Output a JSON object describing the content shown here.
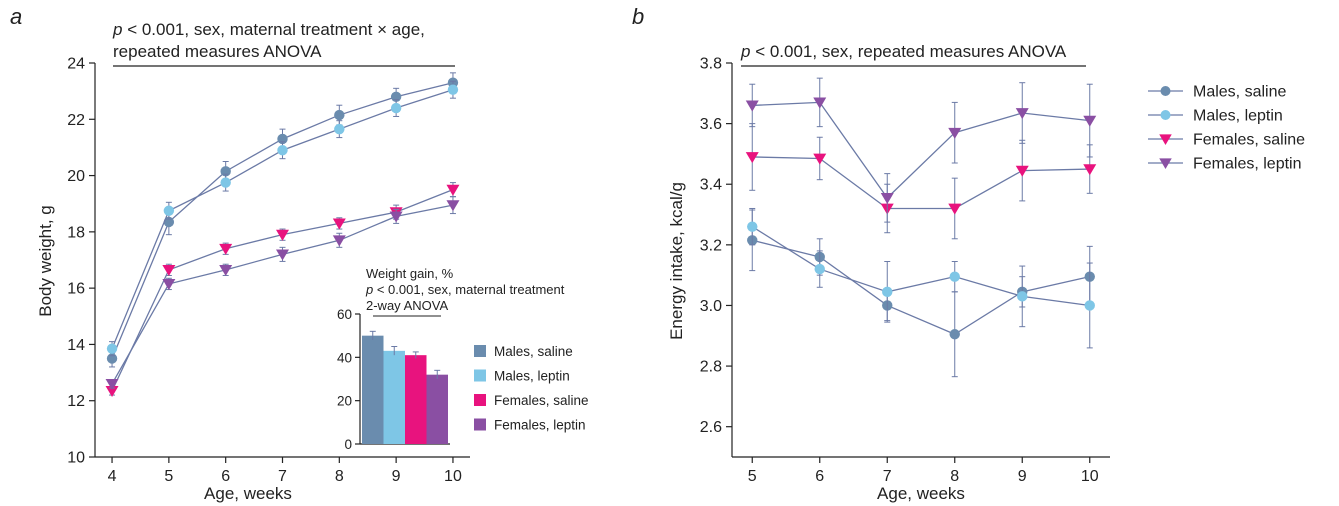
{
  "colors": {
    "males_saline": "#6a8cae",
    "males_leptin": "#7ec6e6",
    "females_saline": "#e8137e",
    "females_leptin": "#8a4fa3",
    "line": "#6b7aa6",
    "error": "#6b7aa6"
  },
  "chart_data": [
    {
      "panel": "a",
      "type": "line",
      "title": "",
      "annotation": {
        "line1_italic": "p",
        "line1_rest": " < 0.001, sex, maternal treatment × age,",
        "line2": "repeated measures ANOVA"
      },
      "xlabel": "Age, weeks",
      "ylabel": "Body weight, g",
      "x": [
        4,
        5,
        6,
        7,
        8,
        9,
        10
      ],
      "xlim": [
        3.7,
        10.3
      ],
      "ylim": [
        10,
        24
      ],
      "yticks": [
        10,
        12,
        14,
        16,
        18,
        20,
        22,
        24
      ],
      "xticks": [
        4,
        5,
        6,
        7,
        8,
        9,
        10
      ],
      "legend": "none",
      "series": [
        {
          "key": "males_saline",
          "marker": "circle",
          "values": [
            13.5,
            18.35,
            20.15,
            21.3,
            22.15,
            22.8,
            23.3
          ],
          "errors": [
            0.3,
            0.45,
            0.35,
            0.35,
            0.35,
            0.3,
            0.35
          ]
        },
        {
          "key": "males_leptin",
          "marker": "circle",
          "values": [
            13.85,
            18.75,
            19.75,
            20.9,
            21.65,
            22.4,
            23.05
          ],
          "errors": [
            0.25,
            0.3,
            0.3,
            0.3,
            0.3,
            0.3,
            0.3
          ]
        },
        {
          "key": "females_saline",
          "marker": "tri-down",
          "values": [
            12.35,
            16.65,
            17.4,
            17.9,
            18.3,
            18.7,
            19.5
          ],
          "errors": [
            0.15,
            0.2,
            0.2,
            0.2,
            0.2,
            0.25,
            0.25
          ]
        },
        {
          "key": "females_leptin",
          "marker": "tri-down",
          "values": [
            12.6,
            16.15,
            16.65,
            17.2,
            17.7,
            18.55,
            18.95
          ],
          "errors": [
            0.15,
            0.2,
            0.2,
            0.25,
            0.25,
            0.25,
            0.3
          ]
        }
      ],
      "inset": {
        "type": "bar",
        "title": "Weight gain, %",
        "annotation": {
          "line1_italic": "p",
          "line1_rest": " < 0.001, sex, maternal treatment",
          "line2": "2-way ANOVA"
        },
        "ylim": [
          0,
          60
        ],
        "yticks": [
          0,
          20,
          40,
          60
        ],
        "categories": [
          "Males, saline",
          "Males, leptin",
          "Females, saline",
          "Females, leptin"
        ],
        "keys": [
          "males_saline",
          "males_leptin",
          "females_saline",
          "females_leptin"
        ],
        "values": [
          50,
          43,
          41,
          32
        ],
        "errors": [
          2,
          2,
          1.5,
          2
        ],
        "legend": "right"
      }
    },
    {
      "panel": "b",
      "type": "line",
      "title": "",
      "annotation": {
        "line1_italic": "p",
        "line1_rest": " < 0.001, sex, repeated measures ANOVA"
      },
      "xlabel": "Age, weeks",
      "ylabel": "Energy intake, kcal/g",
      "x": [
        5,
        6,
        7,
        8,
        9,
        10
      ],
      "xlim": [
        4.7,
        10.3
      ],
      "ylim": [
        2.5,
        3.8
      ],
      "yticks": [
        2.6,
        2.8,
        3.0,
        3.2,
        3.4,
        3.6,
        3.8
      ],
      "xticks": [
        5,
        6,
        7,
        8,
        9,
        10
      ],
      "legend": "right",
      "series": [
        {
          "key": "males_saline",
          "name": "Males, saline",
          "marker": "circle",
          "values": [
            3.215,
            3.16,
            3.0,
            2.905,
            3.045,
            3.095
          ],
          "errors": [
            0.1,
            0.06,
            0.05,
            0.14,
            0.05,
            0.1
          ]
        },
        {
          "key": "males_leptin",
          "name": "Males, leptin",
          "marker": "circle",
          "values": [
            3.26,
            3.12,
            3.045,
            3.095,
            3.03,
            3.0
          ],
          "errors": [
            0.06,
            0.06,
            0.1,
            0.05,
            0.1,
            0.14
          ]
        },
        {
          "key": "females_saline",
          "name": "Females, saline",
          "marker": "tri-down",
          "values": [
            3.49,
            3.485,
            3.32,
            3.32,
            3.445,
            3.45
          ],
          "errors": [
            0.11,
            0.07,
            0.08,
            0.1,
            0.1,
            0.08
          ]
        },
        {
          "key": "females_leptin",
          "name": "Females, leptin",
          "marker": "tri-down",
          "values": [
            3.66,
            3.67,
            3.355,
            3.57,
            3.635,
            3.61
          ],
          "errors": [
            0.07,
            0.08,
            0.08,
            0.1,
            0.1,
            0.12
          ]
        }
      ]
    }
  ]
}
